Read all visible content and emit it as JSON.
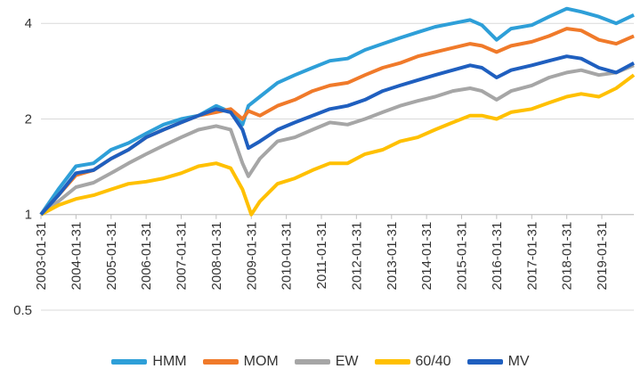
{
  "chart_data": {
    "type": "line",
    "title": "",
    "xlabel": "",
    "ylabel": "",
    "y_scale": "log2",
    "ylim": [
      0.5,
      4.5
    ],
    "y_ticks": [
      "0.5",
      "1",
      "2",
      "4"
    ],
    "x_ticks": [
      "2003-01-31",
      "2004-01-31",
      "2005-01-31",
      "2006-01-31",
      "2007-01-31",
      "2008-01-31",
      "2009-01-31",
      "2010-01-31",
      "2011-01-31",
      "2012-01-31",
      "2013-01-31",
      "2014-01-31",
      "2015-01-31",
      "2016-01-31",
      "2017-01-31",
      "2018-01-31",
      "2019-01-31"
    ],
    "grid": "horizontal",
    "legend_position": "bottom",
    "series": [
      {
        "name": "HMM",
        "color": "#2e9fd8",
        "points": [
          [
            "2003-01-31",
            1.0
          ],
          [
            "2003-07-31",
            1.2
          ],
          [
            "2004-01-31",
            1.42
          ],
          [
            "2004-07-31",
            1.45
          ],
          [
            "2005-01-31",
            1.6
          ],
          [
            "2005-07-31",
            1.68
          ],
          [
            "2006-01-31",
            1.8
          ],
          [
            "2006-07-31",
            1.92
          ],
          [
            "2007-01-31",
            2.0
          ],
          [
            "2007-07-31",
            2.05
          ],
          [
            "2008-01-31",
            2.2
          ],
          [
            "2008-06-30",
            2.1
          ],
          [
            "2008-10-31",
            1.92
          ],
          [
            "2008-12-31",
            2.2
          ],
          [
            "2009-04-30",
            2.35
          ],
          [
            "2009-10-31",
            2.6
          ],
          [
            "2010-04-30",
            2.75
          ],
          [
            "2010-10-31",
            2.9
          ],
          [
            "2011-04-30",
            3.05
          ],
          [
            "2011-10-31",
            3.1
          ],
          [
            "2012-04-30",
            3.3
          ],
          [
            "2012-10-31",
            3.45
          ],
          [
            "2013-04-30",
            3.6
          ],
          [
            "2013-10-31",
            3.75
          ],
          [
            "2014-04-30",
            3.9
          ],
          [
            "2014-10-31",
            4.0
          ],
          [
            "2015-04-30",
            4.1
          ],
          [
            "2015-08-31",
            3.95
          ],
          [
            "2016-01-31",
            3.55
          ],
          [
            "2016-06-30",
            3.85
          ],
          [
            "2017-01-31",
            3.95
          ],
          [
            "2017-07-31",
            4.2
          ],
          [
            "2018-01-31",
            4.45
          ],
          [
            "2018-06-30",
            4.35
          ],
          [
            "2018-12-31",
            4.2
          ],
          [
            "2019-06-30",
            4.0
          ],
          [
            "2019-12-31",
            4.25
          ]
        ]
      },
      {
        "name": "MOM",
        "color": "#f07a2a",
        "points": [
          [
            "2003-01-31",
            1.0
          ],
          [
            "2003-07-31",
            1.15
          ],
          [
            "2004-01-31",
            1.33
          ],
          [
            "2004-07-31",
            1.38
          ],
          [
            "2005-01-31",
            1.5
          ],
          [
            "2005-07-31",
            1.6
          ],
          [
            "2006-01-31",
            1.75
          ],
          [
            "2006-07-31",
            1.85
          ],
          [
            "2007-01-31",
            1.95
          ],
          [
            "2007-07-31",
            2.05
          ],
          [
            "2008-01-31",
            2.1
          ],
          [
            "2008-06-30",
            2.15
          ],
          [
            "2008-10-31",
            2.0
          ],
          [
            "2008-12-31",
            2.12
          ],
          [
            "2009-04-30",
            2.05
          ],
          [
            "2009-10-31",
            2.2
          ],
          [
            "2010-04-30",
            2.3
          ],
          [
            "2010-10-31",
            2.45
          ],
          [
            "2011-04-30",
            2.55
          ],
          [
            "2011-10-31",
            2.6
          ],
          [
            "2012-04-30",
            2.75
          ],
          [
            "2012-10-31",
            2.9
          ],
          [
            "2013-04-30",
            3.0
          ],
          [
            "2013-10-31",
            3.15
          ],
          [
            "2014-04-30",
            3.25
          ],
          [
            "2014-10-31",
            3.35
          ],
          [
            "2015-04-30",
            3.45
          ],
          [
            "2015-08-31",
            3.4
          ],
          [
            "2016-01-31",
            3.25
          ],
          [
            "2016-06-30",
            3.4
          ],
          [
            "2017-01-31",
            3.5
          ],
          [
            "2017-07-31",
            3.65
          ],
          [
            "2018-01-31",
            3.85
          ],
          [
            "2018-06-30",
            3.8
          ],
          [
            "2018-12-31",
            3.55
          ],
          [
            "2019-06-30",
            3.45
          ],
          [
            "2019-12-31",
            3.65
          ]
        ]
      },
      {
        "name": "EW",
        "color": "#a6a6a6",
        "points": [
          [
            "2003-01-31",
            1.0
          ],
          [
            "2003-07-31",
            1.1
          ],
          [
            "2004-01-31",
            1.22
          ],
          [
            "2004-07-31",
            1.26
          ],
          [
            "2005-01-31",
            1.35
          ],
          [
            "2005-07-31",
            1.45
          ],
          [
            "2006-01-31",
            1.55
          ],
          [
            "2006-07-31",
            1.65
          ],
          [
            "2007-01-31",
            1.75
          ],
          [
            "2007-07-31",
            1.85
          ],
          [
            "2008-01-31",
            1.9
          ],
          [
            "2008-06-30",
            1.85
          ],
          [
            "2008-10-31",
            1.45
          ],
          [
            "2008-12-31",
            1.32
          ],
          [
            "2009-04-30",
            1.5
          ],
          [
            "2009-10-31",
            1.7
          ],
          [
            "2010-04-30",
            1.75
          ],
          [
            "2010-10-31",
            1.85
          ],
          [
            "2011-04-30",
            1.95
          ],
          [
            "2011-10-31",
            1.92
          ],
          [
            "2012-04-30",
            2.0
          ],
          [
            "2012-10-31",
            2.1
          ],
          [
            "2013-04-30",
            2.2
          ],
          [
            "2013-10-31",
            2.28
          ],
          [
            "2014-04-30",
            2.35
          ],
          [
            "2014-10-31",
            2.45
          ],
          [
            "2015-04-30",
            2.5
          ],
          [
            "2015-08-31",
            2.45
          ],
          [
            "2016-01-31",
            2.3
          ],
          [
            "2016-06-30",
            2.45
          ],
          [
            "2017-01-31",
            2.55
          ],
          [
            "2017-07-31",
            2.7
          ],
          [
            "2018-01-31",
            2.8
          ],
          [
            "2018-06-30",
            2.85
          ],
          [
            "2018-12-31",
            2.75
          ],
          [
            "2019-06-30",
            2.8
          ],
          [
            "2019-12-31",
            2.95
          ]
        ]
      },
      {
        "name": "60/40",
        "color": "#ffc000",
        "points": [
          [
            "2003-01-31",
            1.0
          ],
          [
            "2003-07-31",
            1.07
          ],
          [
            "2004-01-31",
            1.12
          ],
          [
            "2004-07-31",
            1.15
          ],
          [
            "2005-01-31",
            1.2
          ],
          [
            "2005-07-31",
            1.25
          ],
          [
            "2006-01-31",
            1.27
          ],
          [
            "2006-07-31",
            1.3
          ],
          [
            "2007-01-31",
            1.35
          ],
          [
            "2007-07-31",
            1.42
          ],
          [
            "2008-01-31",
            1.45
          ],
          [
            "2008-06-30",
            1.4
          ],
          [
            "2008-10-31",
            1.2
          ],
          [
            "2009-01-31",
            1.0
          ],
          [
            "2009-04-30",
            1.1
          ],
          [
            "2009-10-31",
            1.25
          ],
          [
            "2010-04-30",
            1.3
          ],
          [
            "2010-10-31",
            1.38
          ],
          [
            "2011-04-30",
            1.45
          ],
          [
            "2011-10-31",
            1.45
          ],
          [
            "2012-04-30",
            1.55
          ],
          [
            "2012-10-31",
            1.6
          ],
          [
            "2013-04-30",
            1.7
          ],
          [
            "2013-10-31",
            1.75
          ],
          [
            "2014-04-30",
            1.85
          ],
          [
            "2014-10-31",
            1.95
          ],
          [
            "2015-04-30",
            2.05
          ],
          [
            "2015-08-31",
            2.05
          ],
          [
            "2016-01-31",
            2.0
          ],
          [
            "2016-06-30",
            2.1
          ],
          [
            "2017-01-31",
            2.15
          ],
          [
            "2017-07-31",
            2.25
          ],
          [
            "2018-01-31",
            2.35
          ],
          [
            "2018-06-30",
            2.4
          ],
          [
            "2018-12-31",
            2.35
          ],
          [
            "2019-06-30",
            2.5
          ],
          [
            "2019-12-31",
            2.75
          ]
        ]
      },
      {
        "name": "MV",
        "color": "#1f5fbf",
        "points": [
          [
            "2003-01-31",
            1.0
          ],
          [
            "2003-07-31",
            1.15
          ],
          [
            "2004-01-31",
            1.35
          ],
          [
            "2004-07-31",
            1.38
          ],
          [
            "2005-01-31",
            1.5
          ],
          [
            "2005-07-31",
            1.6
          ],
          [
            "2006-01-31",
            1.75
          ],
          [
            "2006-07-31",
            1.85
          ],
          [
            "2007-01-31",
            1.95
          ],
          [
            "2007-07-31",
            2.05
          ],
          [
            "2008-01-31",
            2.15
          ],
          [
            "2008-06-30",
            2.1
          ],
          [
            "2008-10-31",
            1.85
          ],
          [
            "2008-12-31",
            1.62
          ],
          [
            "2009-04-30",
            1.7
          ],
          [
            "2009-10-31",
            1.85
          ],
          [
            "2010-04-30",
            1.95
          ],
          [
            "2010-10-31",
            2.05
          ],
          [
            "2011-04-30",
            2.15
          ],
          [
            "2011-10-31",
            2.2
          ],
          [
            "2012-04-30",
            2.3
          ],
          [
            "2012-10-31",
            2.45
          ],
          [
            "2013-04-30",
            2.55
          ],
          [
            "2013-10-31",
            2.65
          ],
          [
            "2014-04-30",
            2.75
          ],
          [
            "2014-10-31",
            2.85
          ],
          [
            "2015-04-30",
            2.95
          ],
          [
            "2015-08-31",
            2.9
          ],
          [
            "2016-01-31",
            2.7
          ],
          [
            "2016-06-30",
            2.85
          ],
          [
            "2017-01-31",
            2.95
          ],
          [
            "2017-07-31",
            3.05
          ],
          [
            "2018-01-31",
            3.15
          ],
          [
            "2018-06-30",
            3.1
          ],
          [
            "2018-12-31",
            2.9
          ],
          [
            "2019-06-30",
            2.8
          ],
          [
            "2019-12-31",
            3.0
          ]
        ]
      }
    ]
  }
}
